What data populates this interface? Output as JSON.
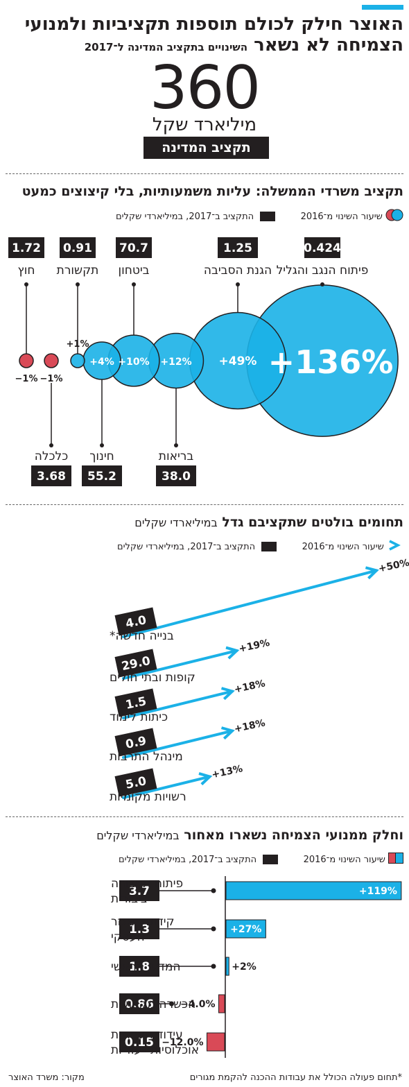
{
  "header": {
    "title_line1": "האוצר חילק לכולם תוספות תקציביות ולמנועי",
    "title_line2": "הצמיחה לא נשאר",
    "subtitle": "השינויים בתקציב המדינה ל־2017",
    "big_number": "360",
    "big_unit": "מיליארד שקל",
    "badge": "תקציב המדינה ל־2017"
  },
  "colors": {
    "accent": "#1bb1e7",
    "negative": "#d94a57",
    "dark": "#231f20"
  },
  "legend": {
    "change_label": "שיעור השינוי מ־2016",
    "budget_label": "התקציב ב־2017, במיליארדי שקלים"
  },
  "section1": {
    "title": "תקציב משרדי הממשלה: עליות משמעותיות, בלי קיצוצים כמעט"
  },
  "section2": {
    "title": "תחומים בולטים שתקציבם גדל",
    "title_light": "במיליארדי שקלים"
  },
  "section3": {
    "title": "וחלק ממנועי הצמיחה נשארו מאחור",
    "title_light": "במיליארדי שקלים"
  },
  "footer": {
    "source": "מקור: משרד האוצר",
    "note": "*תחום פעולה הכולל את עבודות ההכנה להקמת מגורים"
  },
  "chart_data": [
    {
      "type": "bubble",
      "title": "תקציב משרדי הממשלה: עליות משמעותיות, בלי קיצוצים כמעט",
      "series": [
        {
          "name": "התקציב ב־2017, במיליארדי שקלים",
          "values": [
            0.424,
            1.25,
            38.0,
            70.7,
            55.2,
            0.91,
            3.68,
            1.72
          ]
        },
        {
          "name": "שיעור השינוי מ־2016",
          "values": [
            136,
            49,
            12,
            10,
            4,
            1,
            -1,
            -1
          ]
        }
      ],
      "categories": [
        "פיתוח הנגב והגליל",
        "הגנת הסביבה",
        "בריאות",
        "ביטחון",
        "חינוך",
        "תקשורת",
        "כלכלה",
        "חוץ"
      ],
      "change_labels": [
        "+136%",
        "+49%",
        "+12%",
        "+10%",
        "+4%",
        "+1%",
        "−1%",
        "−1%"
      ],
      "budget_labels": [
        "0.424",
        "1.25",
        "38.0",
        "70.7",
        "55.2",
        "0.91",
        "3.68",
        "1.72"
      ]
    },
    {
      "type": "bar",
      "title": "תחומים בולטים שתקציבם גדל",
      "categories": [
        "בנייה חדשה*",
        "קופות ובתי חולים",
        "כיתות לימוד",
        "מינהל התרבות",
        "רשויות מקומיות"
      ],
      "series": [
        {
          "name": "התקציב ב־2017, במיליארדי שקלים",
          "values": [
            4.0,
            29.0,
            1.5,
            0.9,
            5.0
          ]
        },
        {
          "name": "שיעור השינוי מ־2016",
          "values": [
            50,
            19,
            18,
            18,
            13
          ]
        }
      ],
      "change_labels": [
        "+50%",
        "+19%",
        "+18%",
        "+18%",
        "+13%"
      ],
      "budget_labels": [
        "4.0",
        "29.0",
        "1.5",
        "0.9",
        "5.0"
      ]
    },
    {
      "type": "bar",
      "title": "וחלק ממנועי הצמיחה נשארו מאחור",
      "categories": [
        "פיתוח תחבורה ציבורית",
        "קידום המגזר העסקי",
        "המדען הראשי",
        "הכשרה מקצועית",
        "עידוד תעסוקת אוכלוסיות ייעודיות"
      ],
      "category_lines": [
        [
          "פיתוח תחבורה",
          "ציבורית"
        ],
        [
          "קידום המגזר",
          "העסקי"
        ],
        [
          "המדען הראשי"
        ],
        [
          "הכשרה מקצועית"
        ],
        [
          "עידוד תעסוקת",
          "אוכלוסיות ייעודיות"
        ]
      ],
      "series": [
        {
          "name": "התקציב ב־2017, במיליארדי שקלים",
          "values": [
            3.7,
            1.3,
            1.8,
            0.86,
            0.15
          ]
        },
        {
          "name": "שיעור השינוי מ־2016",
          "values": [
            119,
            27,
            2,
            -4.0,
            -12.0
          ]
        }
      ],
      "change_labels": [
        "+119%",
        "+27%",
        "+2%",
        "−4.0%",
        "−12.0%"
      ],
      "budget_labels": [
        "3.7",
        "1.3",
        "1.8",
        "0.86",
        "0.15"
      ]
    }
  ]
}
